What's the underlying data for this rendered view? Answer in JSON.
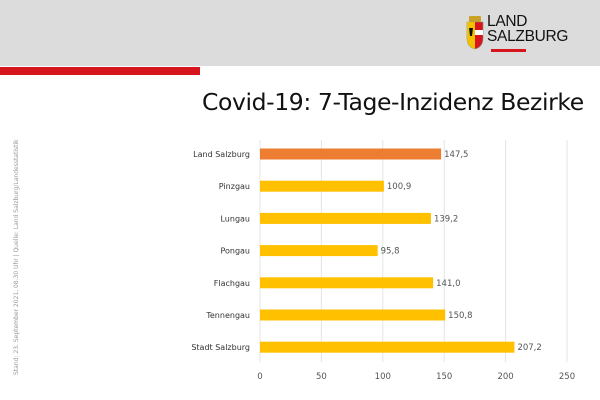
{
  "header": {
    "logo_line1": "LAND",
    "logo_line2": "SALZBURG"
  },
  "side_note": "Stand: 23. September  2021, 08.30 Uhr  |  Quelle: Land Salzburg/Landesstatistik",
  "colors": {
    "header_bg": "#dcdcdc",
    "accent_red": "#d7151c",
    "highlight_bar": "#ed7d31",
    "bar": "#ffc000"
  },
  "chart_data": {
    "type": "bar",
    "orientation": "horizontal",
    "title": "Covid-19: 7-Tage-Inzidenz Bezirke",
    "categories": [
      "Land Salzburg",
      "Pinzgau",
      "Lungau",
      "Pongau",
      "Flachgau",
      "Tennengau",
      "Stadt Salzburg"
    ],
    "values": [
      147.5,
      100.9,
      139.2,
      95.8,
      141.0,
      150.8,
      207.2
    ],
    "value_labels": [
      "147,5",
      "100,9",
      "139,2",
      "95,8",
      "141,0",
      "150,8",
      "207,2"
    ],
    "highlight": "Land Salzburg",
    "xlim": [
      0,
      250
    ],
    "xticks": [
      0,
      50,
      100,
      150,
      200,
      250
    ],
    "grid": true,
    "legend": "none"
  }
}
